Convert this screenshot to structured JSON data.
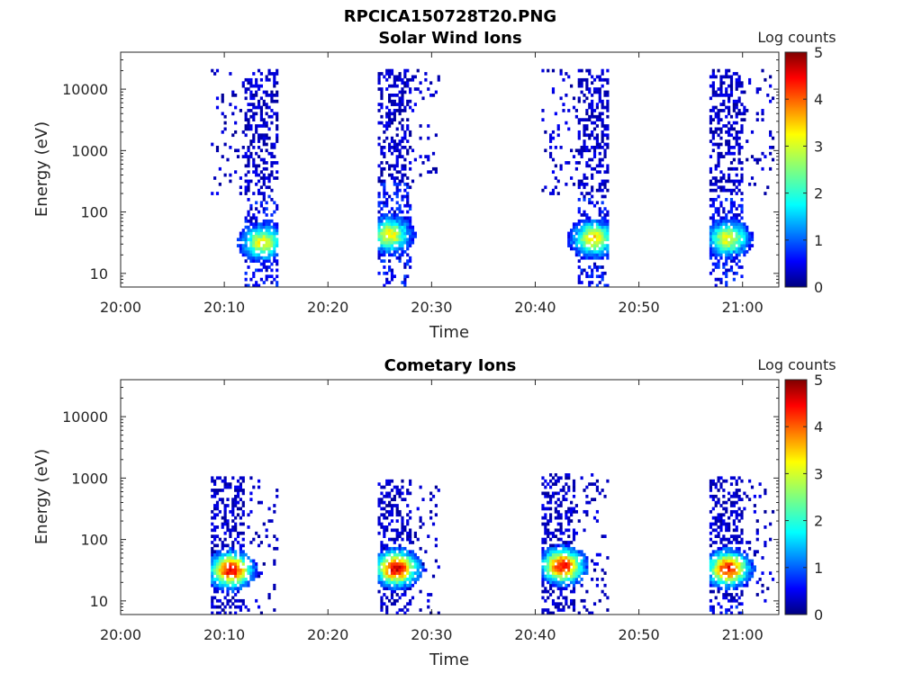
{
  "figure": {
    "title": "RPCICA150728T20.PNG"
  },
  "chart_data": [
    {
      "type": "heatmap",
      "title": "Solar Wind Ions",
      "xlabel": "Time",
      "ylabel": "Energy (eV)",
      "x_ticks": [
        "20:00",
        "20:10",
        "20:20",
        "20:30",
        "20:40",
        "20:50",
        "21:00"
      ],
      "x_range_minutes": [
        0,
        63.5
      ],
      "y_scale": "log",
      "y_ticks": [
        "10",
        "100",
        "1000",
        "10000"
      ],
      "y_range": [
        6,
        40000
      ],
      "colorbar": {
        "label": "Log counts",
        "ticks": [
          "0",
          "1",
          "2",
          "3",
          "4",
          "5"
        ],
        "range": [
          0,
          5
        ]
      },
      "groups": [
        {
          "t_start": 8.7,
          "t_end": 15.0,
          "sparse_min_eV": 300,
          "sparse_max_eV": 20000,
          "dense_t_start": 11.8,
          "core_t": 13.6,
          "core_eV": 30,
          "core_peak": 2.8
        },
        {
          "t_start": 24.8,
          "t_end": 30.8,
          "sparse_min_eV": 500,
          "sparse_max_eV": 20000,
          "dense_t_start": 24.8,
          "core_t": 25.8,
          "core_eV": 40,
          "core_peak": 2.9
        },
        {
          "t_start": 40.6,
          "t_end": 47.0,
          "sparse_min_eV": 300,
          "sparse_max_eV": 20000,
          "dense_t_start": 44.0,
          "core_t": 45.5,
          "core_eV": 35,
          "core_peak": 3.0
        },
        {
          "t_start": 56.8,
          "t_end": 63.0,
          "sparse_min_eV": 300,
          "sparse_max_eV": 20000,
          "dense_t_start": 56.8,
          "core_t": 58.5,
          "core_eV": 35,
          "core_peak": 2.8
        }
      ]
    },
    {
      "type": "heatmap",
      "title": "Cometary Ions",
      "xlabel": "Time",
      "ylabel": "Energy (eV)",
      "x_ticks": [
        "20:00",
        "20:10",
        "20:20",
        "20:30",
        "20:40",
        "20:50",
        "21:00"
      ],
      "x_range_minutes": [
        0,
        63.5
      ],
      "y_scale": "log",
      "y_ticks": [
        "10",
        "100",
        "1000",
        "10000"
      ],
      "y_range": [
        6,
        40000
      ],
      "colorbar": {
        "label": "Log counts",
        "ticks": [
          "0",
          "1",
          "2",
          "3",
          "4",
          "5"
        ],
        "range": [
          0,
          5
        ]
      },
      "groups": [
        {
          "t_start": 8.7,
          "t_end": 15.0,
          "sparse_min_eV": 10,
          "sparse_max_eV": 1000,
          "dense_t_start": 8.7,
          "core_t": 10.5,
          "core_eV": 30,
          "core_peak": 4.2
        },
        {
          "t_start": 24.8,
          "t_end": 30.8,
          "sparse_min_eV": 10,
          "sparse_max_eV": 900,
          "dense_t_start": 24.8,
          "core_t": 26.5,
          "core_eV": 32,
          "core_peak": 4.3
        },
        {
          "t_start": 40.6,
          "t_end": 47.0,
          "sparse_min_eV": 10,
          "sparse_max_eV": 1100,
          "dense_t_start": 40.6,
          "core_t": 42.5,
          "core_eV": 35,
          "core_peak": 4.1
        },
        {
          "t_start": 56.8,
          "t_end": 63.0,
          "sparse_min_eV": 15,
          "sparse_max_eV": 1000,
          "dense_t_start": 56.8,
          "core_t": 58.5,
          "core_eV": 32,
          "core_peak": 4.0
        }
      ]
    }
  ]
}
